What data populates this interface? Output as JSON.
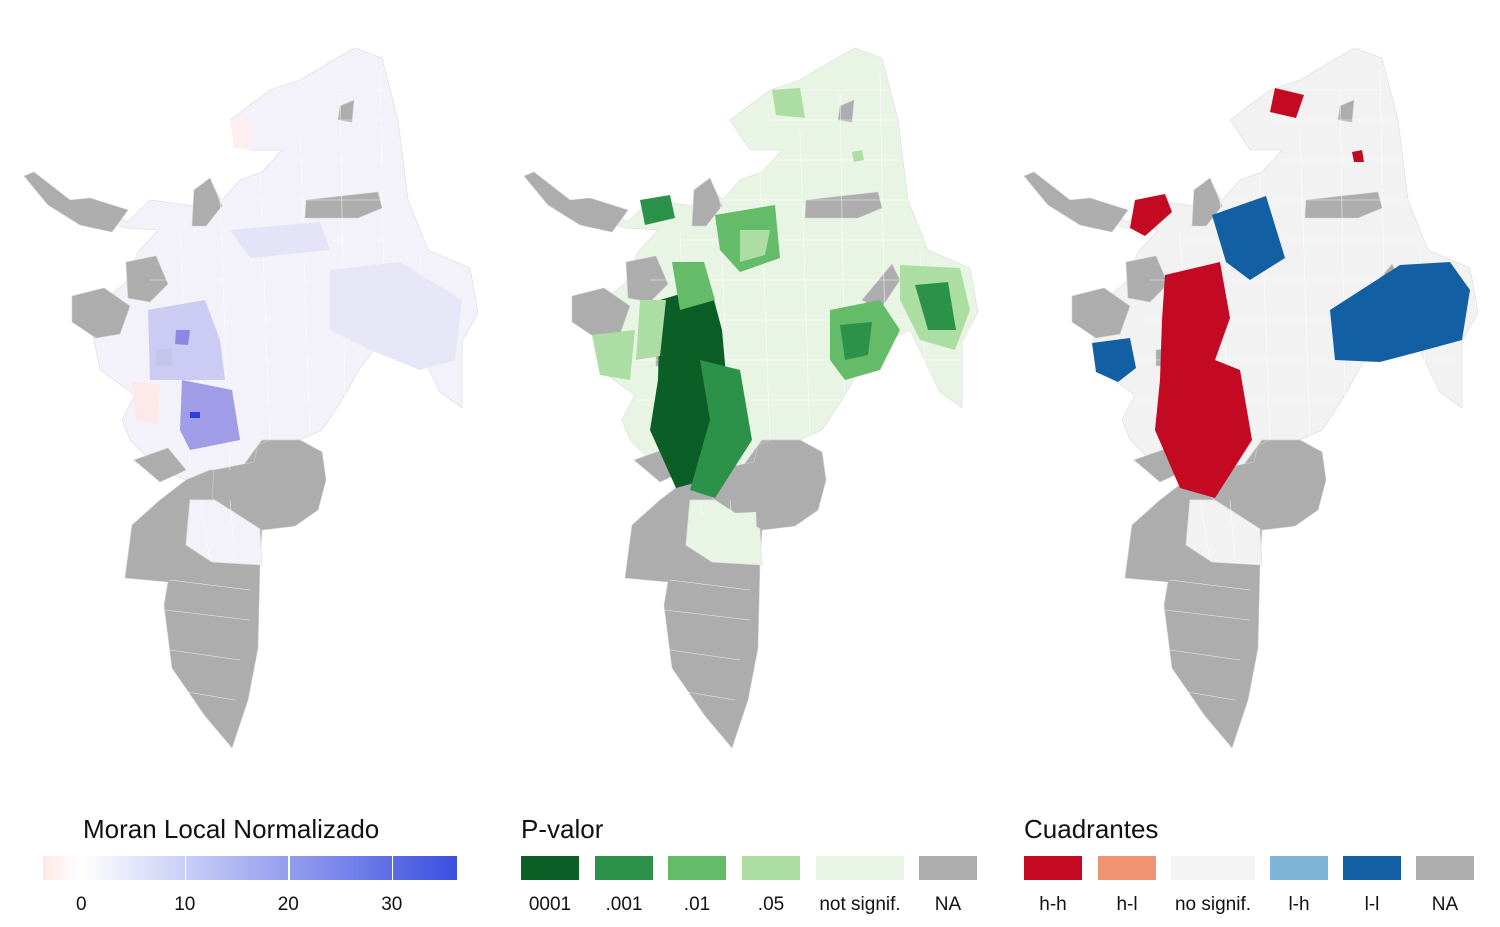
{
  "maps": [
    {
      "name": "moran-local-map",
      "neutral": "#f3f1f9",
      "highlight": "#5b5be0"
    },
    {
      "name": "p-valor-map",
      "neutral": "#e9f5e4",
      "highlight": "#0c6a2e"
    },
    {
      "name": "cuadrantes-map",
      "neutral": "#f2f2f2",
      "highlight": "#c0061f"
    }
  ],
  "legend_moran": {
    "title": "Moran Local Normalizado",
    "colors": [
      "#fee8e6",
      "#ffffff",
      "#3b4fe0"
    ],
    "ticks": [
      {
        "label": "0",
        "value": 0
      },
      {
        "label": "10",
        "value": 10
      },
      {
        "label": "20",
        "value": 20
      },
      {
        "label": "30",
        "value": 30
      }
    ],
    "range": [
      -3.7,
      36.3
    ]
  },
  "legend_pvalor": {
    "title": "P-valor",
    "items": [
      {
        "label": "0001",
        "color": "#0c5e27"
      },
      {
        "label": ".001",
        "color": "#2c9249"
      },
      {
        "label": ".01",
        "color": "#64bb68"
      },
      {
        "label": ".05",
        "color": "#acdea3"
      },
      {
        "label": "not signif.",
        "color": "#e9f5e4"
      },
      {
        "label": "NA",
        "color": "#adadad"
      }
    ]
  },
  "legend_cuadrantes": {
    "title": "Cuadrantes",
    "items": [
      {
        "label": "h-h",
        "color": "#c40a22"
      },
      {
        "label": "h-l",
        "color": "#ef9472"
      },
      {
        "label": "no signif.",
        "color": "#f4f4f4"
      },
      {
        "label": "l-h",
        "color": "#7fb6d8"
      },
      {
        "label": "l-l",
        "color": "#135fa3"
      },
      {
        "label": "NA",
        "color": "#adadad"
      }
    ]
  },
  "na_color": "#adadad"
}
